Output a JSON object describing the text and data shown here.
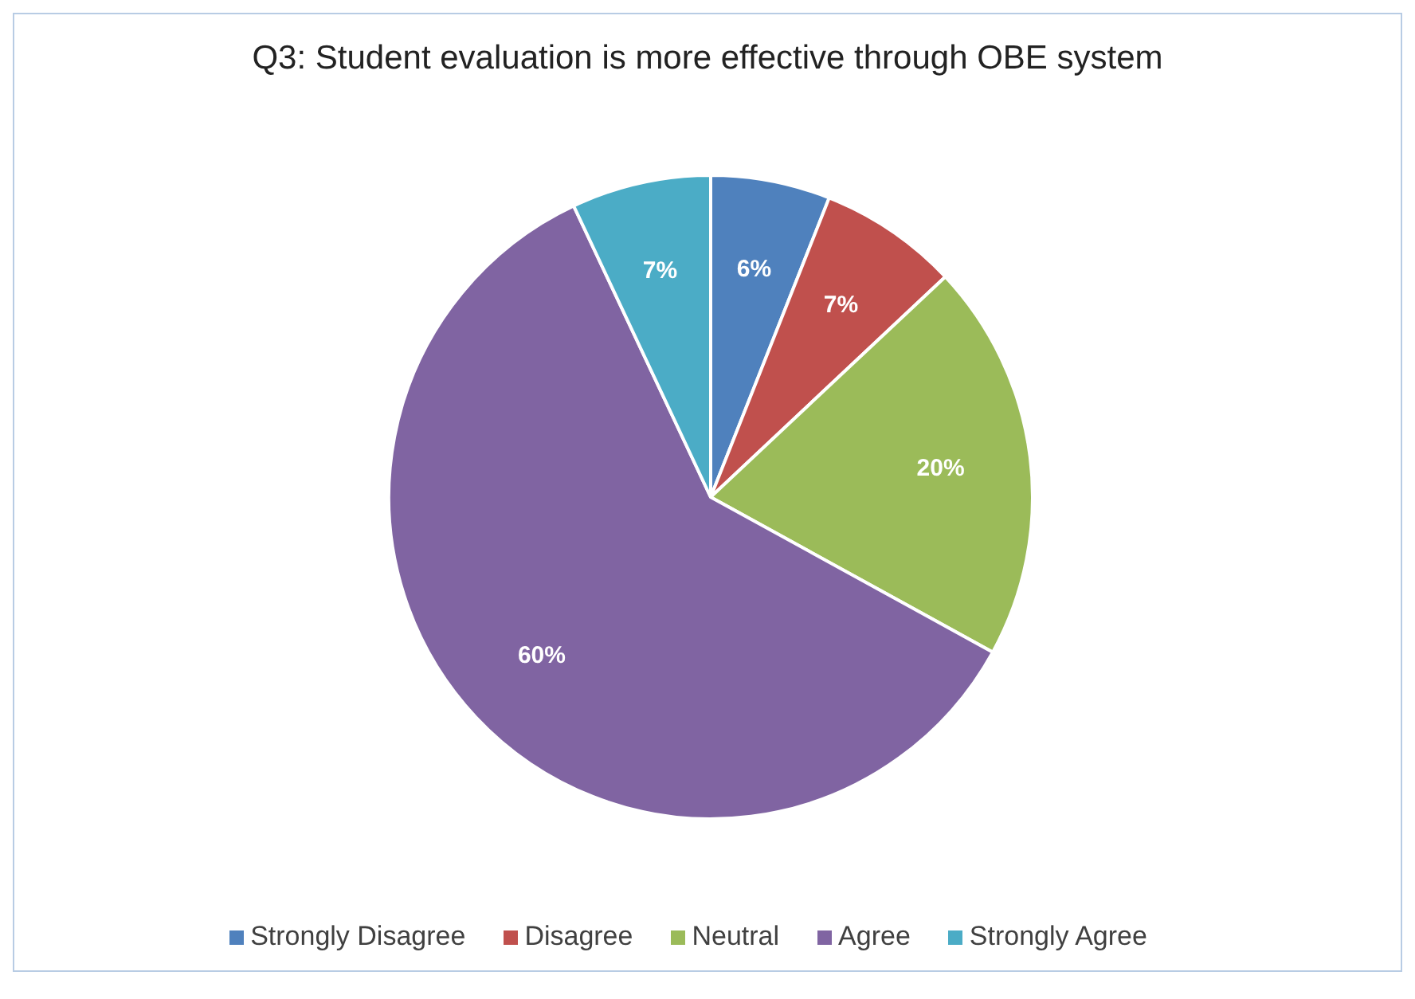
{
  "chart_data": {
    "type": "pie",
    "title": "Q3: Student evaluation is more effective through OBE system",
    "categories": [
      "Strongly Disagree",
      "Disagree",
      "Neutral",
      "Agree",
      "Strongly Agree"
    ],
    "values": [
      6,
      7,
      20,
      60,
      7
    ],
    "colors": [
      "#4f81bd",
      "#c0504d",
      "#9bbb59",
      "#8064a2",
      "#4bacc6"
    ],
    "value_labels": [
      "6%",
      "7%",
      "20%",
      "60%",
      "7%"
    ],
    "legend": "bottom"
  }
}
